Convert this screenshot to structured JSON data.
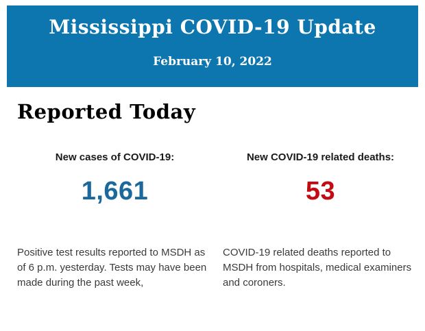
{
  "header": {
    "title": "Mississippi COVID-19 Update",
    "date": "February 10, 2022",
    "background_color": "#0e76ae",
    "text_color": "#ffffff"
  },
  "main": {
    "section_title": "Reported Today",
    "stats": [
      {
        "label": "New cases of COVID-19:",
        "value": "1,661",
        "value_color": "#1a699c",
        "description": "Positive test results reported to MSDH as of 6 p.m. yesterday. Tests may have been made during the past week,"
      },
      {
        "label": "New COVID-19 related deaths:",
        "value": "53",
        "value_color": "#c20b13",
        "description": "COVID-19 related deaths reported to MSDH from hospitals, medical examiners and coroners."
      }
    ]
  }
}
